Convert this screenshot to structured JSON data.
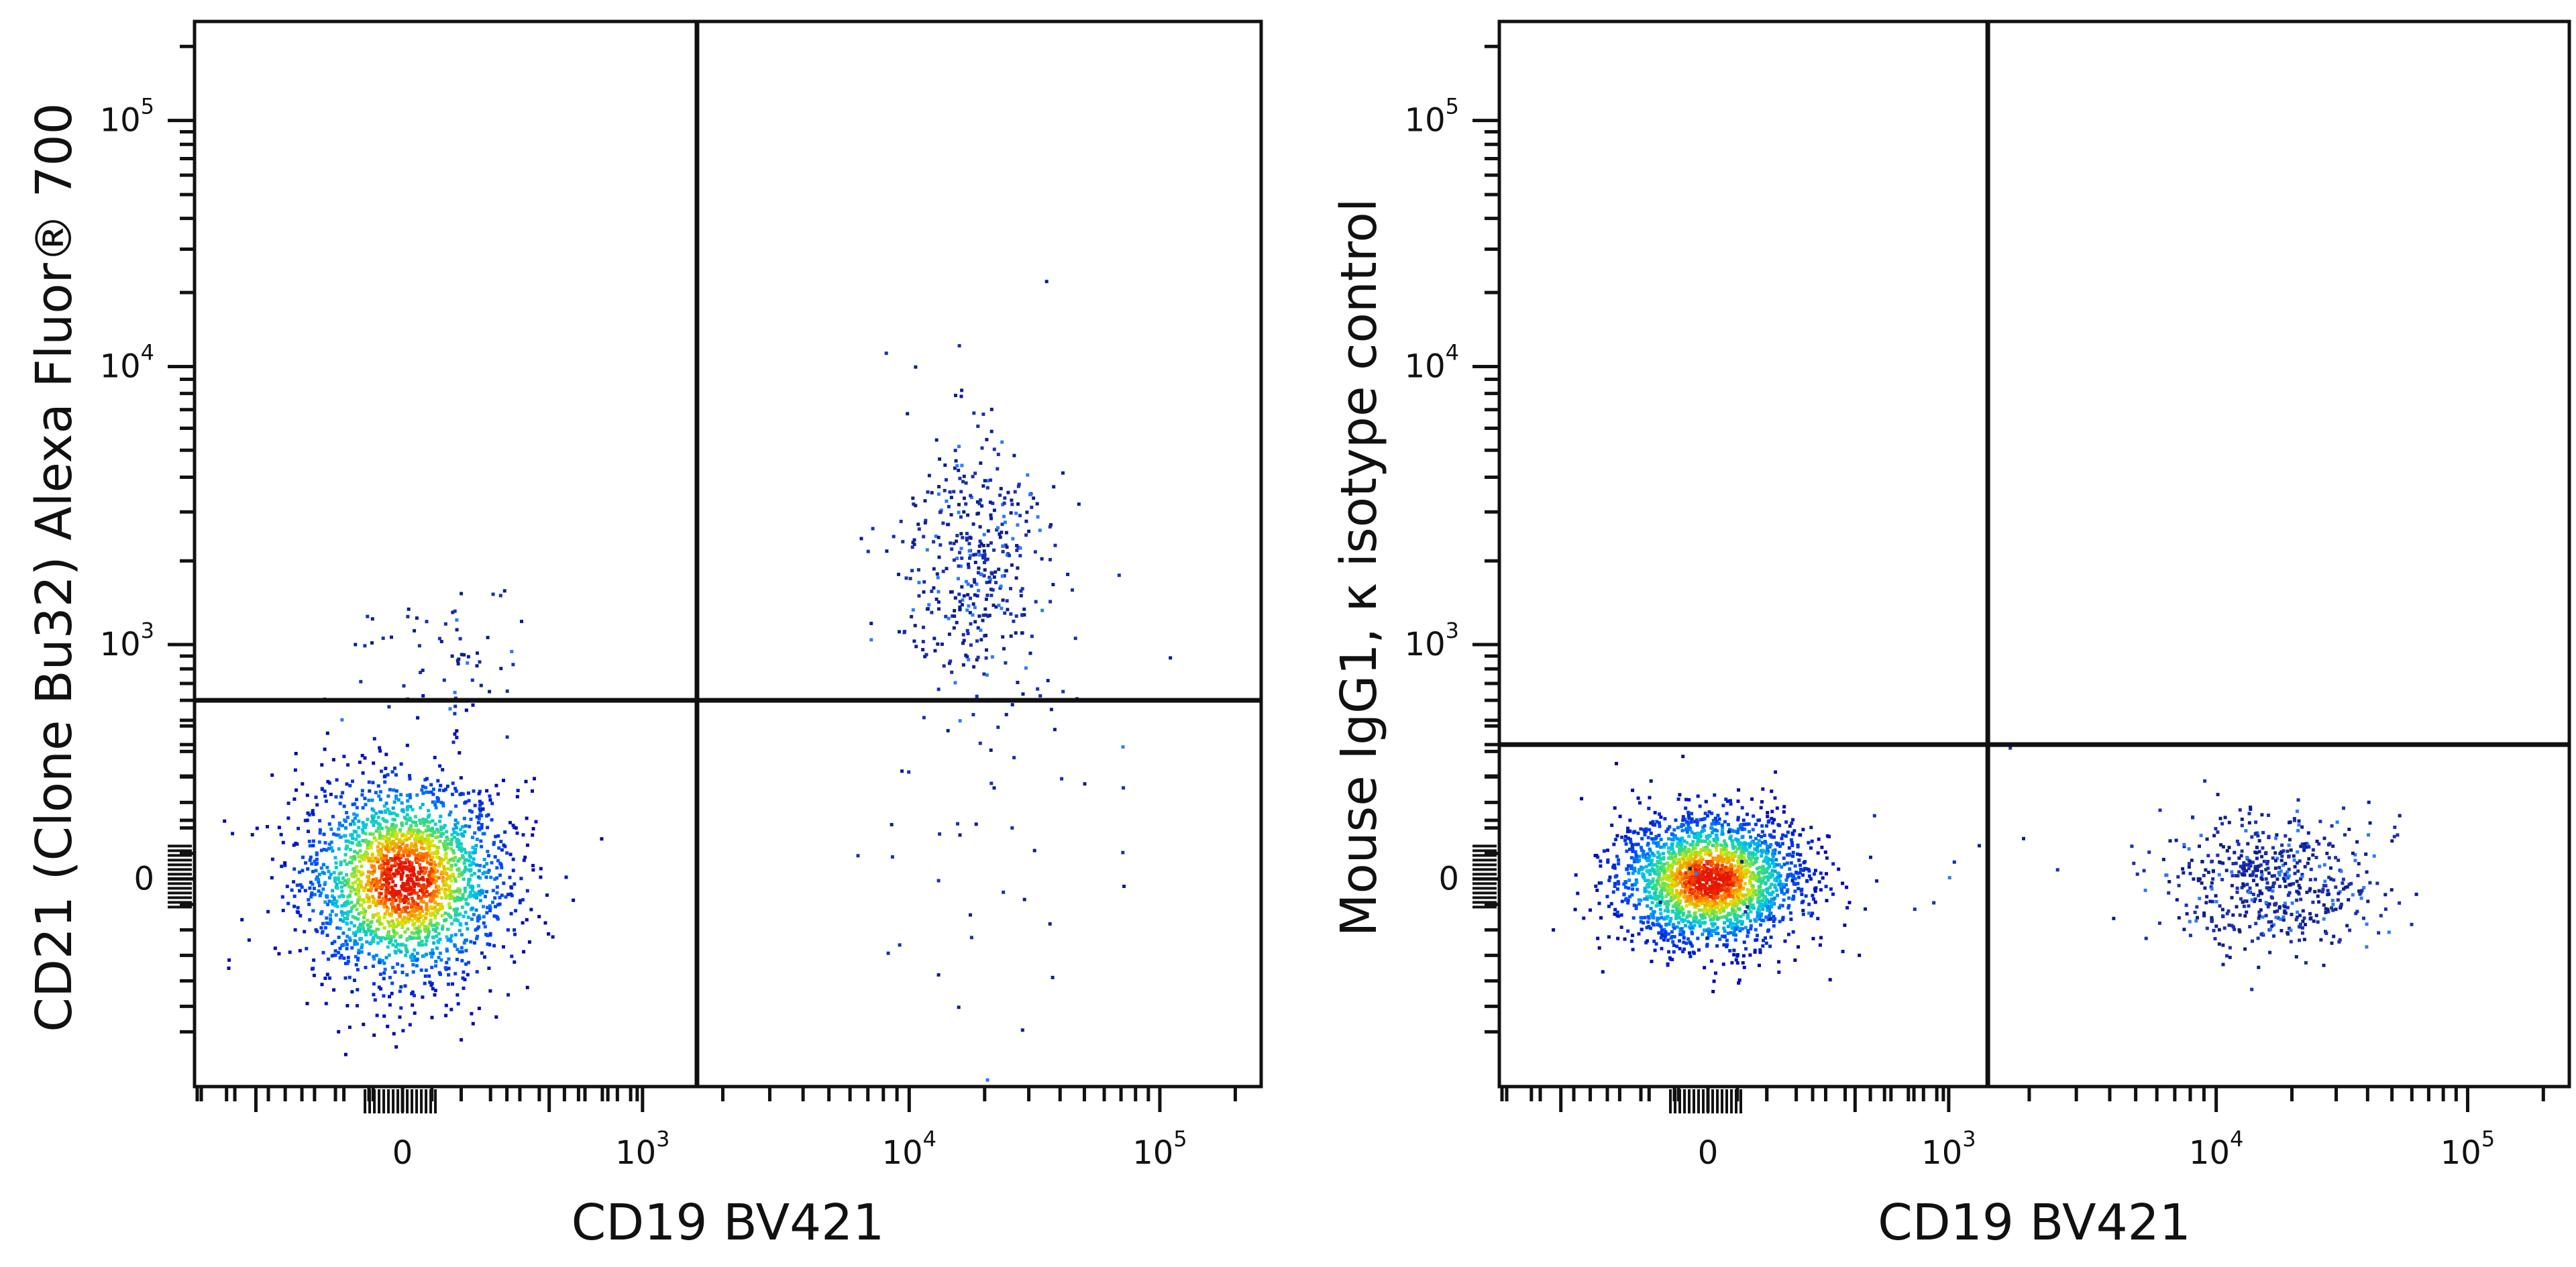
{
  "chart_data": [
    {
      "type": "scatter",
      "subtype": "flow-cytometry-density-dot-plot",
      "xlabel": "CD19 BV421",
      "ylabel": "CD21 (Clone Bu32) Alexa Fluor® 700",
      "x_scale": "biexponential",
      "y_scale": "biexponential",
      "x_ticks": [
        {
          "value": 0,
          "base": "0",
          "exp": ""
        },
        {
          "value": 1000,
          "base": "10",
          "exp": "3"
        },
        {
          "value": 10000,
          "base": "10",
          "exp": "4"
        },
        {
          "value": 100000,
          "base": "10",
          "exp": "5"
        }
      ],
      "y_ticks": [
        {
          "value": 0,
          "base": "0",
          "exp": ""
        },
        {
          "value": 1000,
          "base": "10",
          "exp": "3"
        },
        {
          "value": 10000,
          "base": "10",
          "exp": "4"
        },
        {
          "value": 100000,
          "base": "10",
          "exp": "5"
        }
      ],
      "gates": {
        "x": 1600,
        "y": 600
      },
      "grid": false,
      "legend": "none",
      "populations": [
        {
          "x_center": 0,
          "y_center": 0,
          "x_spread": 0.22,
          "y_spread": 0.22,
          "count": 2200,
          "density_colored": true
        },
        {
          "x_center": 18000,
          "y_center": 2000,
          "x_spread": 0.16,
          "y_spread": 0.28,
          "count": 420,
          "density_colored": false
        },
        {
          "x_center": 20000,
          "y_center": 150,
          "x_spread": 0.3,
          "y_spread": 0.5,
          "count": 40,
          "density_colored": false
        },
        {
          "x_center": 100,
          "y_center": 900,
          "x_spread": 0.2,
          "y_spread": 0.15,
          "count": 60,
          "density_colored": false
        }
      ]
    },
    {
      "type": "scatter",
      "subtype": "flow-cytometry-density-dot-plot",
      "xlabel": "CD19 BV421",
      "ylabel": "Mouse IgG1, κ isotype control",
      "x_scale": "biexponential",
      "y_scale": "biexponential",
      "x_ticks": [
        {
          "value": 0,
          "base": "0",
          "exp": ""
        },
        {
          "value": 1000,
          "base": "10",
          "exp": "3"
        },
        {
          "value": 10000,
          "base": "10",
          "exp": "4"
        },
        {
          "value": 100000,
          "base": "10",
          "exp": "5"
        }
      ],
      "y_ticks": [
        {
          "value": 0,
          "base": "0",
          "exp": ""
        },
        {
          "value": 1000,
          "base": "10",
          "exp": "3"
        },
        {
          "value": 10000,
          "base": "10",
          "exp": "4"
        },
        {
          "value": 100000,
          "base": "10",
          "exp": "5"
        }
      ],
      "gates": {
        "x": 1400,
        "y": 400
      },
      "grid": false,
      "legend": "none",
      "populations": [
        {
          "x_center": 0,
          "y_center": 0,
          "x_spread": 0.2,
          "y_spread": 0.14,
          "count": 2200,
          "density_colored": true
        },
        {
          "x_center": 16000,
          "y_center": 0,
          "x_spread": 0.22,
          "y_spread": 0.14,
          "count": 550,
          "density_colored": false
        },
        {
          "x_center": 400,
          "y_center": 50,
          "x_spread": 0.5,
          "y_spread": 0.2,
          "count": 30,
          "density_colored": false
        }
      ]
    }
  ]
}
